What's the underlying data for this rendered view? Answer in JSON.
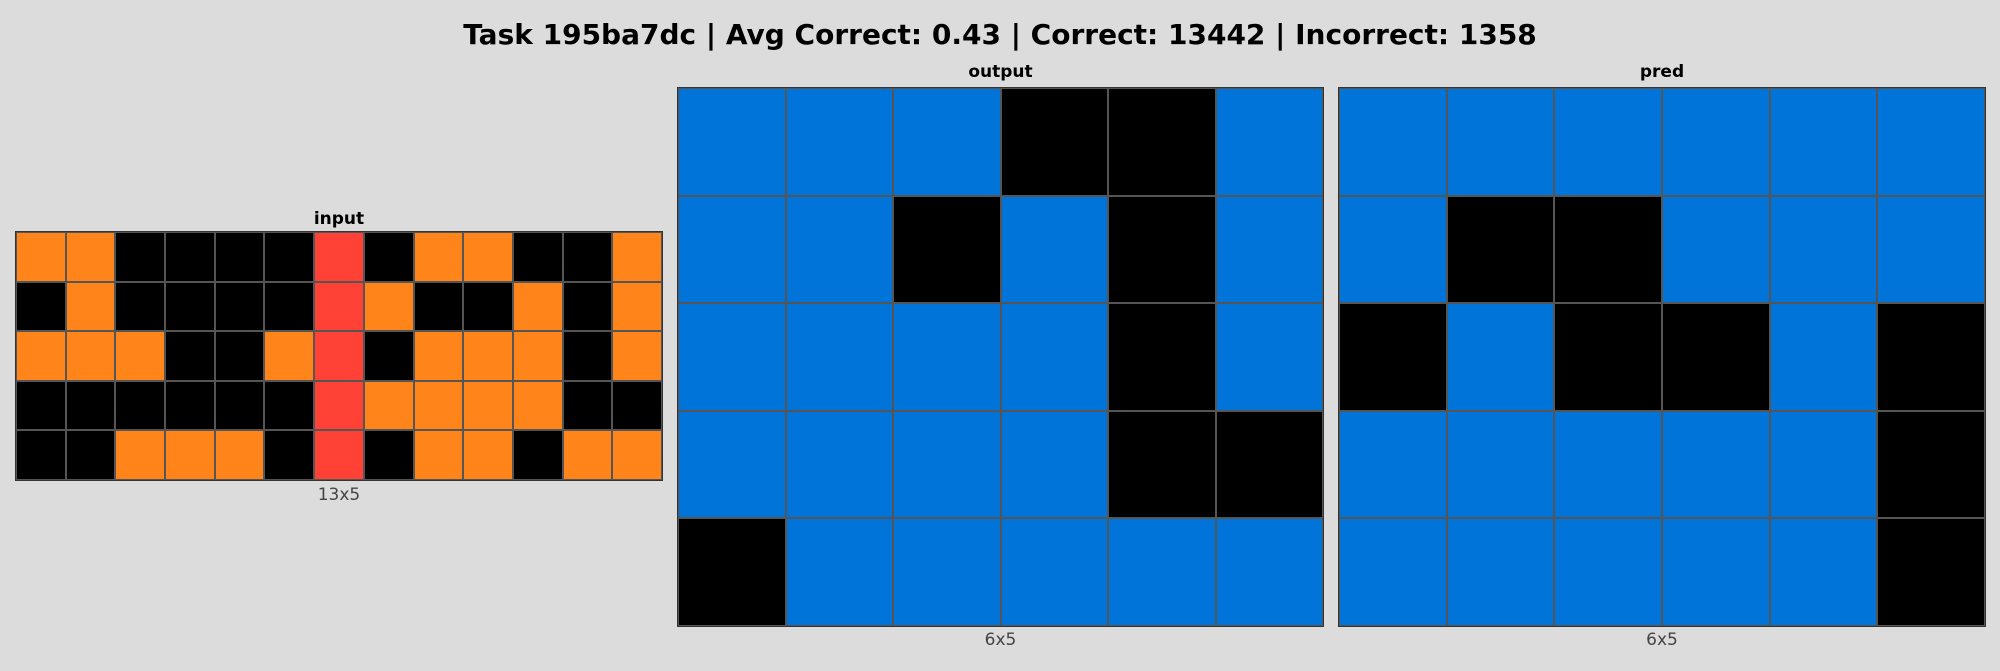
{
  "header": {
    "title": "Task 195ba7dc | Avg Correct: 0.43 | Correct: 13442 | Incorrect: 1358"
  },
  "palette": {
    "0": "#000000",
    "1": "#0074D9",
    "2": "#FF4136",
    "7": "#FF851B"
  },
  "panels": {
    "input": {
      "title": "input",
      "dims": "13x5",
      "grid": [
        [
          7,
          7,
          0,
          0,
          0,
          0,
          2,
          0,
          7,
          7,
          0,
          0,
          7
        ],
        [
          0,
          7,
          0,
          0,
          0,
          0,
          2,
          7,
          0,
          0,
          7,
          0,
          7
        ],
        [
          7,
          7,
          7,
          0,
          0,
          7,
          2,
          0,
          7,
          7,
          7,
          0,
          7
        ],
        [
          0,
          0,
          0,
          0,
          0,
          0,
          2,
          7,
          7,
          7,
          7,
          0,
          0
        ],
        [
          0,
          0,
          7,
          7,
          7,
          0,
          2,
          0,
          7,
          7,
          0,
          7,
          7
        ]
      ]
    },
    "output": {
      "title": "output",
      "dims": "6x5",
      "grid": [
        [
          1,
          1,
          1,
          0,
          0,
          1
        ],
        [
          1,
          1,
          0,
          1,
          0,
          1
        ],
        [
          1,
          1,
          1,
          1,
          0,
          1
        ],
        [
          1,
          1,
          1,
          1,
          0,
          0
        ],
        [
          0,
          1,
          1,
          1,
          1,
          1
        ]
      ]
    },
    "pred": {
      "title": "pred",
      "dims": "6x5",
      "grid": [
        [
          1,
          1,
          1,
          1,
          1,
          1
        ],
        [
          1,
          0,
          0,
          1,
          1,
          1
        ],
        [
          0,
          1,
          0,
          0,
          1,
          0
        ],
        [
          1,
          1,
          1,
          1,
          1,
          0
        ],
        [
          1,
          1,
          1,
          1,
          1,
          0
        ]
      ]
    }
  }
}
